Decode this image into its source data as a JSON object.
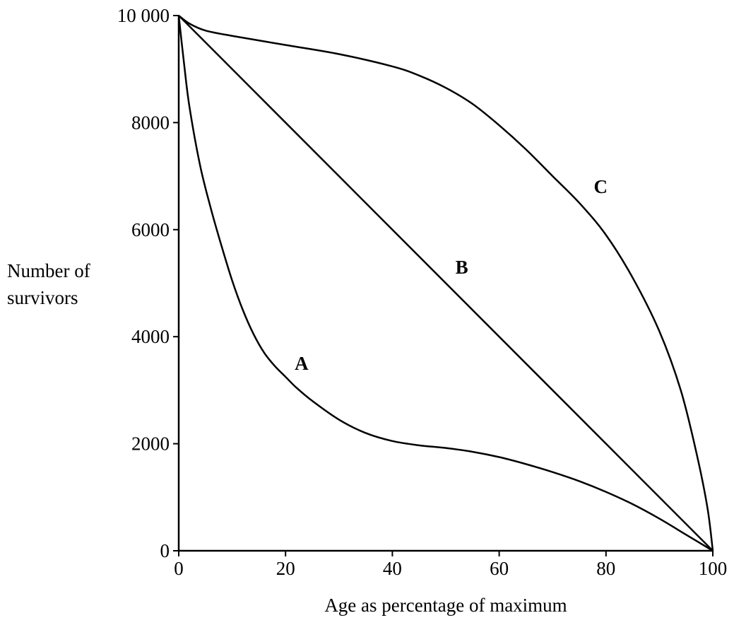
{
  "chart_data": {
    "type": "line",
    "title": "",
    "xlabel": "Age as percentage of maximum",
    "ylabel_lines": [
      "Number of",
      "survivors"
    ],
    "xlim": [
      0,
      100
    ],
    "ylim": [
      0,
      10000
    ],
    "x_ticks": [
      0,
      20,
      40,
      60,
      80,
      100
    ],
    "y_ticks": [
      0,
      2000,
      4000,
      6000,
      8000,
      10000
    ],
    "x_tick_labels": [
      "0",
      "20",
      "40",
      "60",
      "80",
      "100"
    ],
    "y_tick_labels": [
      "0",
      "2000",
      "4000",
      "6000",
      "8000",
      "10 000"
    ],
    "grid": false,
    "series": [
      {
        "name": "A",
        "x": [
          0,
          1,
          2,
          4,
          6,
          8,
          10,
          12,
          14,
          16,
          18,
          20,
          22,
          25,
          30,
          35,
          40,
          45,
          50,
          55,
          60,
          65,
          70,
          75,
          80,
          85,
          90,
          95,
          100
        ],
        "y": [
          10000,
          9100,
          8300,
          7200,
          6400,
          5700,
          5050,
          4500,
          4050,
          3700,
          3450,
          3250,
          3050,
          2800,
          2450,
          2200,
          2050,
          1970,
          1920,
          1850,
          1750,
          1620,
          1470,
          1300,
          1100,
          870,
          600,
          300,
          0
        ]
      },
      {
        "name": "B",
        "x": [
          0,
          100
        ],
        "y": [
          10000,
          0
        ]
      },
      {
        "name": "C",
        "x": [
          0,
          2,
          5,
          10,
          20,
          30,
          40,
          45,
          50,
          55,
          60,
          65,
          70,
          75,
          80,
          85,
          90,
          94,
          97,
          99,
          100
        ],
        "y": [
          10000,
          9850,
          9720,
          9620,
          9450,
          9280,
          9050,
          8880,
          8650,
          8350,
          7950,
          7500,
          7000,
          6500,
          5900,
          5100,
          4100,
          3000,
          1800,
          800,
          0
        ]
      }
    ],
    "labels": [
      {
        "text": "A",
        "x": 23,
        "y": 3500
      },
      {
        "text": "B",
        "x": 53,
        "y": 5300
      },
      {
        "text": "C",
        "x": 79,
        "y": 6800
      }
    ]
  }
}
